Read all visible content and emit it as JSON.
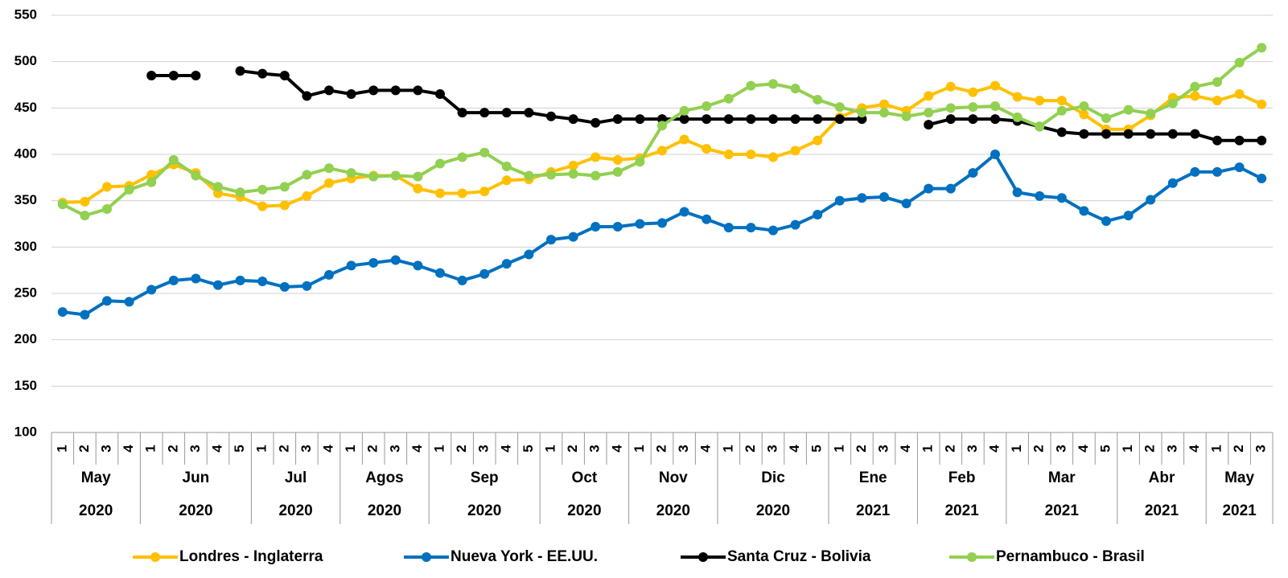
{
  "chart_data": {
    "type": "line",
    "groups": [
      {
        "label": "May",
        "year": "2020",
        "weeks": [
          "1",
          "2",
          "3",
          "4"
        ]
      },
      {
        "label": "Jun",
        "year": "2020",
        "weeks": [
          "1",
          "2",
          "3",
          "4",
          "5"
        ]
      },
      {
        "label": "Jul",
        "year": "2020",
        "weeks": [
          "1",
          "2",
          "3",
          "4"
        ]
      },
      {
        "label": "Agos",
        "year": "2020",
        "weeks": [
          "1",
          "2",
          "3",
          "4"
        ]
      },
      {
        "label": "Sep",
        "year": "2020",
        "weeks": [
          "1",
          "2",
          "3",
          "4",
          "5"
        ]
      },
      {
        "label": "Oct",
        "year": "2020",
        "weeks": [
          "1",
          "2",
          "3",
          "4"
        ]
      },
      {
        "label": "Nov",
        "year": "2020",
        "weeks": [
          "1",
          "2",
          "3",
          "4"
        ]
      },
      {
        "label": "Dic",
        "year": "2020",
        "weeks": [
          "1",
          "2",
          "3",
          "4",
          "5"
        ]
      },
      {
        "label": "Ene",
        "year": "2021",
        "weeks": [
          "1",
          "2",
          "3",
          "4"
        ]
      },
      {
        "label": "Feb",
        "year": "2021",
        "weeks": [
          "1",
          "2",
          "3",
          "4"
        ]
      },
      {
        "label": "Mar",
        "year": "2021",
        "weeks": [
          "1",
          "2",
          "3",
          "4",
          "5"
        ]
      },
      {
        "label": "Abr",
        "year": "2021",
        "weeks": [
          "1",
          "2",
          "3",
          "4"
        ]
      },
      {
        "label": "May",
        "year": "2021",
        "weeks": [
          "1",
          "2",
          "3"
        ]
      }
    ],
    "series": [
      {
        "name": "Londres - Inglaterra",
        "color": "#ffc000",
        "values": [
          348,
          349,
          365,
          366,
          378,
          389,
          380,
          358,
          354,
          344,
          345,
          355,
          369,
          374,
          377,
          377,
          363,
          358,
          358,
          360,
          372,
          373,
          381,
          388,
          397,
          394,
          396,
          404,
          416,
          406,
          400,
          400,
          397,
          404,
          415,
          440,
          450,
          454,
          447,
          463,
          473,
          467,
          474,
          462,
          458,
          458,
          443,
          427,
          427,
          442,
          461,
          463,
          458,
          465,
          454
        ]
      },
      {
        "name": "Nueva York - EE.UU.",
        "color": "#0070c0",
        "values": [
          230,
          227,
          242,
          241,
          254,
          264,
          266,
          259,
          264,
          263,
          257,
          258,
          270,
          280,
          283,
          286,
          280,
          272,
          264,
          271,
          282,
          292,
          308,
          311,
          322,
          322,
          325,
          326,
          338,
          330,
          321,
          321,
          318,
          324,
          335,
          350,
          353,
          354,
          347,
          363,
          363,
          380,
          400,
          359,
          355,
          353,
          339,
          328,
          334,
          351,
          369,
          381,
          381,
          386,
          374
        ]
      },
      {
        "name": "Santa Cruz - Bolivia",
        "color": "#000000",
        "values": [
          null,
          null,
          null,
          null,
          485,
          485,
          485,
          null,
          490,
          487,
          485,
          463,
          469,
          465,
          469,
          469,
          469,
          465,
          445,
          445,
          445,
          445,
          441,
          438,
          434,
          438,
          438,
          438,
          438,
          438,
          438,
          438,
          438,
          438,
          438,
          438,
          438,
          null,
          null,
          432,
          438,
          438,
          438,
          436,
          430,
          424,
          422,
          422,
          422,
          422,
          422,
          422,
          415,
          415,
          415
        ]
      },
      {
        "name": "Pernambuco - Brasil",
        "color": "#92d050",
        "values": [
          346,
          334,
          341,
          362,
          370,
          394,
          377,
          365,
          359,
          362,
          365,
          378,
          385,
          380,
          376,
          377,
          376,
          390,
          397,
          402,
          387,
          377,
          378,
          379,
          377,
          381,
          392,
          431,
          447,
          452,
          460,
          474,
          476,
          471,
          459,
          451,
          445,
          445,
          441,
          445,
          450,
          451,
          452,
          440,
          430,
          447,
          452,
          439,
          448,
          444,
          455,
          473,
          478,
          499,
          515
        ]
      }
    ],
    "ylim": [
      100,
      550
    ],
    "yticks": [
      100,
      150,
      200,
      250,
      300,
      350,
      400,
      450,
      500,
      550
    ],
    "grid": true
  }
}
